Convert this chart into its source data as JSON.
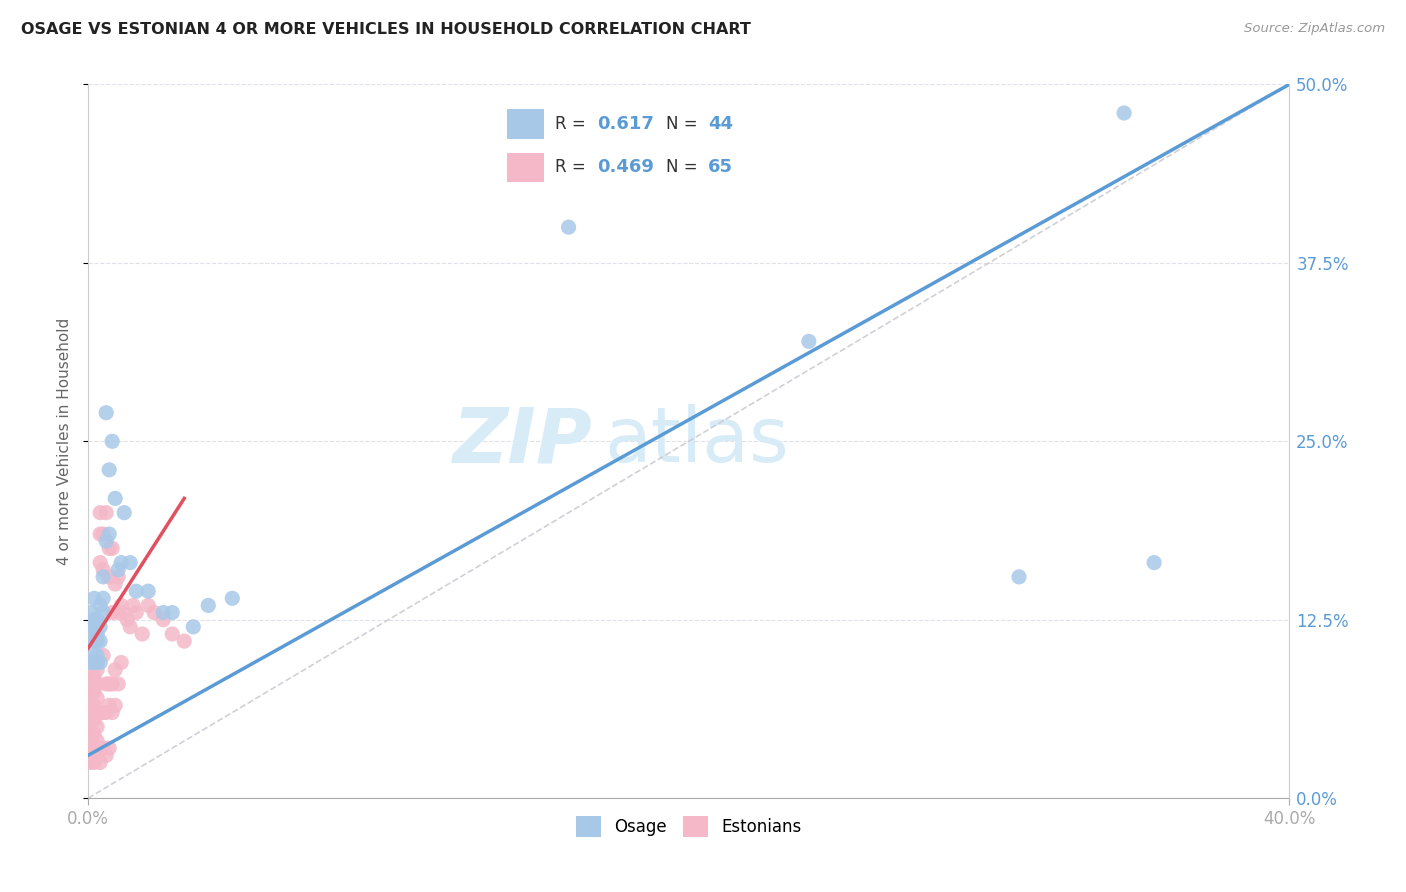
{
  "title": "OSAGE VS ESTONIAN 4 OR MORE VEHICLES IN HOUSEHOLD CORRELATION CHART",
  "source": "Source: ZipAtlas.com",
  "ylabel": "4 or more Vehicles in Household",
  "xlim": [
    0.0,
    0.4
  ],
  "ylim": [
    0.0,
    0.5
  ],
  "osage_color": "#a8c8e8",
  "estonian_color": "#f4b8c8",
  "osage_line_color": "#5b9bd5",
  "estonian_line_color": "#e05060",
  "diagonal_color": "#c8c8d0",
  "watermark_zip": "ZIP",
  "watermark_atlas": "atlas",
  "watermark_color": "#d8ecf8",
  "background_color": "#ffffff",
  "grid_color": "#e0e0e8",
  "title_color": "#222222",
  "axis_label_color": "#666666",
  "tick_color_blue": "#5b9bd5",
  "r_osage": "0.617",
  "n_osage": "44",
  "r_estonian": "0.469",
  "n_estonian": "65",
  "osage_x": [
    0.001,
    0.001,
    0.001,
    0.001,
    0.002,
    0.002,
    0.002,
    0.002,
    0.002,
    0.002,
    0.003,
    0.003,
    0.003,
    0.003,
    0.003,
    0.004,
    0.004,
    0.004,
    0.004,
    0.005,
    0.005,
    0.005,
    0.006,
    0.006,
    0.007,
    0.007,
    0.008,
    0.009,
    0.01,
    0.011,
    0.012,
    0.014,
    0.016,
    0.02,
    0.025,
    0.028,
    0.035,
    0.04,
    0.048,
    0.16,
    0.24,
    0.31,
    0.345,
    0.355
  ],
  "osage_y": [
    0.095,
    0.11,
    0.12,
    0.13,
    0.095,
    0.1,
    0.11,
    0.12,
    0.125,
    0.14,
    0.095,
    0.1,
    0.11,
    0.115,
    0.125,
    0.095,
    0.11,
    0.12,
    0.135,
    0.13,
    0.14,
    0.155,
    0.18,
    0.27,
    0.185,
    0.23,
    0.25,
    0.21,
    0.16,
    0.165,
    0.2,
    0.165,
    0.145,
    0.145,
    0.13,
    0.13,
    0.12,
    0.135,
    0.14,
    0.4,
    0.32,
    0.155,
    0.48,
    0.165
  ],
  "estonian_x": [
    0.001,
    0.001,
    0.001,
    0.001,
    0.001,
    0.001,
    0.001,
    0.001,
    0.002,
    0.002,
    0.002,
    0.002,
    0.002,
    0.002,
    0.002,
    0.003,
    0.003,
    0.003,
    0.003,
    0.003,
    0.003,
    0.003,
    0.004,
    0.004,
    0.004,
    0.004,
    0.004,
    0.004,
    0.005,
    0.005,
    0.005,
    0.005,
    0.005,
    0.006,
    0.006,
    0.006,
    0.006,
    0.007,
    0.007,
    0.007,
    0.007,
    0.007,
    0.008,
    0.008,
    0.008,
    0.008,
    0.009,
    0.009,
    0.009,
    0.01,
    0.01,
    0.01,
    0.011,
    0.011,
    0.012,
    0.013,
    0.014,
    0.015,
    0.016,
    0.018,
    0.02,
    0.022,
    0.025,
    0.028,
    0.032
  ],
  "estonian_y": [
    0.025,
    0.035,
    0.045,
    0.055,
    0.065,
    0.075,
    0.085,
    0.095,
    0.025,
    0.035,
    0.045,
    0.055,
    0.065,
    0.075,
    0.085,
    0.03,
    0.04,
    0.05,
    0.06,
    0.07,
    0.08,
    0.09,
    0.025,
    0.035,
    0.06,
    0.165,
    0.185,
    0.2,
    0.035,
    0.06,
    0.1,
    0.16,
    0.185,
    0.03,
    0.06,
    0.08,
    0.2,
    0.035,
    0.065,
    0.08,
    0.155,
    0.175,
    0.06,
    0.08,
    0.13,
    0.175,
    0.065,
    0.09,
    0.15,
    0.08,
    0.13,
    0.155,
    0.095,
    0.135,
    0.13,
    0.125,
    0.12,
    0.135,
    0.13,
    0.115,
    0.135,
    0.13,
    0.125,
    0.115,
    0.11
  ]
}
